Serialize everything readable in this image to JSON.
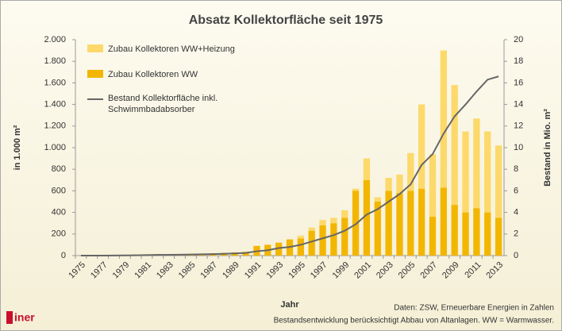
{
  "chart_data": {
    "type": "bar",
    "title": "Absatz Kollektorfläche seit 1975",
    "ylabel": "in 1.000 m²",
    "y2label": "Bestand in Mio. m²",
    "xlabel": "Jahr",
    "source": "Daten: ZSW, Erneuerbare Energien in Zahlen",
    "note": "Bestandsentwicklung berücksichtigt Abbau von Altanlagen. WW = Warmwasser.",
    "logo": "iner",
    "categories": [
      "1975",
      null,
      "1977",
      null,
      "1979",
      null,
      "1981",
      null,
      "1983",
      null,
      "1985",
      null,
      "1987",
      null,
      "1989",
      null,
      "1991",
      null,
      "1993",
      null,
      "1995",
      null,
      "1997",
      null,
      "1999",
      null,
      "2001",
      null,
      "2003",
      null,
      "2005",
      null,
      "2007",
      null,
      "2009",
      null,
      "2011",
      null,
      "2013"
    ],
    "series": [
      {
        "name": "Zubau Kollektoren WW+Heizung",
        "type": "bar",
        "color": "#fcd96a",
        "values": [
          0,
          0,
          0,
          0,
          0,
          0,
          0,
          0,
          0,
          0,
          0,
          0,
          0,
          0,
          0,
          0,
          0,
          0,
          0,
          0,
          25,
          30,
          50,
          50,
          70,
          20,
          200,
          40,
          120,
          170,
          350,
          780,
          580,
          1270,
          1110,
          750,
          830,
          750,
          670
        ]
      },
      {
        "name": "Zubau Kollektoren WW",
        "type": "bar",
        "color": "#f2b600",
        "values": [
          0,
          0,
          2,
          3,
          5,
          10,
          12,
          15,
          12,
          12,
          15,
          18,
          22,
          25,
          30,
          35,
          90,
          100,
          120,
          150,
          160,
          230,
          280,
          300,
          350,
          600,
          700,
          500,
          600,
          580,
          600,
          620,
          360,
          630,
          470,
          400,
          440,
          400,
          350
        ]
      },
      {
        "name": "Bestand Kollektorfläche inkl. Schwimmbadabsorber",
        "type": "line",
        "axis": "y2",
        "color": "#666666",
        "values": [
          0,
          0,
          0,
          0.01,
          0.02,
          0.03,
          0.05,
          0.06,
          0.07,
          0.08,
          0.1,
          0.12,
          0.14,
          0.17,
          0.2,
          0.25,
          0.4,
          0.5,
          0.7,
          0.8,
          1.0,
          1.3,
          1.6,
          1.9,
          2.3,
          2.9,
          3.8,
          4.3,
          5.0,
          5.7,
          6.6,
          8.4,
          9.4,
          11.3,
          12.9,
          14.0,
          15.2,
          16.3,
          16.6
        ]
      }
    ],
    "ylim": [
      0,
      2000
    ],
    "yticks": [
      0,
      {
        "value": 200,
        "label": "200"
      },
      {
        "value": 400,
        "label": "400"
      },
      {
        "value": 600,
        "label": "600"
      },
      {
        "value": 800,
        "label": "800"
      },
      {
        "value": 1000,
        "label": "1.000"
      },
      {
        "value": 1200,
        "label": "1.200"
      },
      {
        "value": 1400,
        "label": "1.400"
      },
      {
        "value": 1600,
        "label": "1.600"
      },
      {
        "value": 1800,
        "label": "1.800"
      },
      {
        "value": 2000,
        "label": "2.000"
      }
    ],
    "y2lim": [
      0,
      20
    ],
    "y2ticks": [
      0,
      2,
      4,
      6,
      8,
      10,
      12,
      14,
      16,
      18,
      20
    ],
    "grid": false
  }
}
